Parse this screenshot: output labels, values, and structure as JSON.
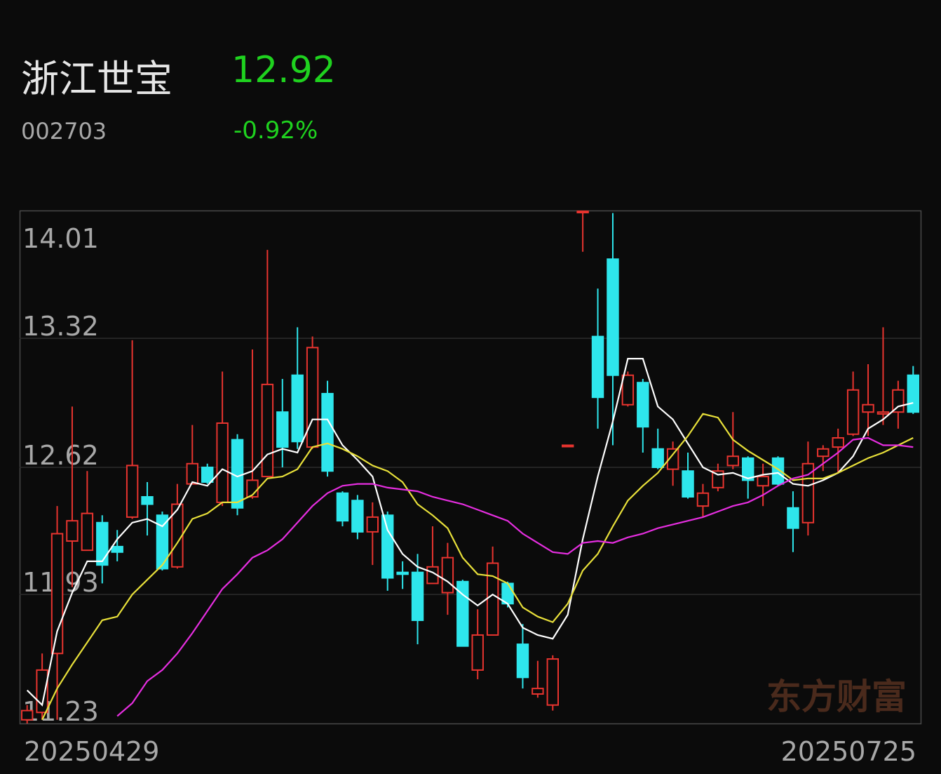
{
  "header": {
    "name": "浙江世宝",
    "price": "12.92",
    "code": "002703",
    "change": "-0.92%"
  },
  "chart_data": {
    "type": "candlestick",
    "watermark": "东方财富",
    "categories": [
      "20250429",
      null,
      null,
      null,
      null,
      null,
      null,
      null,
      null,
      null,
      null,
      null,
      null,
      null,
      null,
      null,
      null,
      null,
      null,
      null,
      null,
      null,
      null,
      null,
      null,
      null,
      null,
      null,
      null,
      null,
      null,
      null,
      null,
      null,
      null,
      null,
      null,
      null,
      null,
      null,
      null,
      null,
      null,
      null,
      null,
      null,
      null,
      null,
      null,
      null,
      null,
      null,
      null,
      null,
      null,
      null,
      null,
      null,
      null,
      "20250725"
    ],
    "open": [
      11.25,
      11.29,
      11.61,
      12.22,
      12.17,
      12.32,
      12.19,
      12.35,
      12.46,
      12.36,
      12.08,
      12.53,
      12.62,
      12.43,
      12.77,
      12.46,
      12.57,
      12.92,
      13.12,
      12.73,
      13.02,
      12.48,
      12.44,
      12.27,
      12.36,
      12.05,
      12.05,
      11.99,
      11.94,
      12.0,
      11.52,
      11.71,
      11.99,
      11.66,
      11.39,
      11.33,
      12.74,
      14.01,
      13.33,
      13.75,
      12.96,
      13.08,
      12.72,
      12.61,
      12.6,
      12.41,
      12.51,
      12.63,
      12.67,
      12.52,
      12.67,
      12.4,
      12.32,
      12.68,
      12.73,
      12.8,
      12.92,
      12.91,
      12.92,
      13.12
    ],
    "high": [
      11.33,
      11.61,
      12.41,
      12.95,
      12.6,
      12.36,
      12.28,
      13.31,
      12.54,
      12.38,
      12.53,
      12.85,
      12.64,
      13.14,
      12.8,
      13.26,
      13.8,
      13.1,
      13.38,
      13.33,
      13.09,
      12.49,
      12.47,
      12.43,
      12.38,
      12.11,
      12.15,
      12.3,
      12.21,
      12.01,
      11.85,
      12.19,
      12.0,
      11.77,
      11.57,
      11.6,
      12.74,
      14.01,
      13.59,
      14.0,
      13.14,
      13.1,
      12.83,
      12.76,
      12.7,
      12.53,
      12.64,
      12.92,
      12.68,
      12.64,
      12.68,
      12.49,
      12.76,
      12.74,
      12.83,
      13.14,
      13.18,
      13.38,
      13.09,
      13.17
    ],
    "low": [
      11.23,
      11.25,
      11.25,
      11.97,
      12.17,
      11.99,
      12.11,
      12.34,
      12.25,
      12.06,
      12.07,
      12.53,
      12.53,
      12.41,
      12.36,
      12.45,
      12.57,
      12.62,
      12.72,
      12.72,
      12.57,
      12.3,
      12.23,
      12.09,
      11.95,
      11.96,
      11.66,
      11.99,
      11.82,
      11.65,
      11.47,
      11.71,
      11.86,
      11.42,
      11.37,
      11.3,
      12.74,
      13.79,
      12.83,
      12.74,
      12.95,
      12.7,
      12.61,
      12.52,
      12.45,
      12.35,
      12.49,
      12.61,
      12.45,
      12.41,
      12.52,
      12.16,
      12.25,
      12.6,
      12.59,
      12.79,
      12.79,
      12.85,
      12.83,
      12.91
    ],
    "close": [
      11.3,
      11.52,
      12.26,
      12.33,
      12.37,
      12.09,
      12.16,
      12.63,
      12.42,
      12.07,
      12.42,
      12.64,
      12.54,
      12.86,
      12.4,
      12.55,
      13.07,
      12.73,
      12.76,
      13.27,
      12.6,
      12.33,
      12.27,
      12.35,
      12.02,
      12.04,
      11.79,
      12.08,
      12.13,
      11.65,
      11.71,
      12.1,
      11.88,
      11.48,
      11.42,
      11.58,
      12.74,
      14.01,
      13.0,
      13.12,
      13.12,
      12.84,
      12.62,
      12.72,
      12.46,
      12.48,
      12.6,
      12.68,
      12.55,
      12.57,
      12.53,
      12.29,
      12.64,
      12.72,
      12.78,
      13.04,
      12.96,
      12.92,
      13.04,
      12.92
    ],
    "up_color": "#e8342f",
    "down_color": "#2ee6ec",
    "series": [
      {
        "color": "#ffffff",
        "values": [
          11.41,
          11.33,
          11.73,
          11.94,
          12.11,
          12.11,
          12.23,
          12.32,
          12.34,
          12.3,
          12.39,
          12.54,
          12.52,
          12.61,
          12.57,
          12.6,
          12.69,
          12.72,
          12.7,
          12.88,
          12.88,
          12.74,
          12.66,
          12.57,
          12.28,
          12.15,
          12.08,
          12.05,
          12.0,
          11.93,
          11.87,
          11.93,
          11.88,
          11.75,
          11.71,
          11.69,
          11.82,
          12.23,
          12.57,
          12.87,
          13.21,
          13.21,
          12.95,
          12.88,
          12.75,
          12.62,
          12.58,
          12.59,
          12.56,
          12.58,
          12.59,
          12.53,
          12.52,
          12.55,
          12.59,
          12.68,
          12.83,
          12.88,
          12.95,
          12.97
        ]
      },
      {
        "color": "#e8e03a",
        "values": [
          null,
          11.25,
          11.42,
          11.55,
          11.67,
          11.79,
          11.81,
          11.93,
          12.01,
          12.09,
          12.21,
          12.34,
          12.37,
          12.43,
          12.43,
          12.47,
          12.56,
          12.57,
          12.61,
          12.73,
          12.75,
          12.72,
          12.68,
          12.63,
          12.6,
          12.54,
          12.42,
          12.36,
          12.29,
          12.13,
          12.04,
          12.03,
          11.99,
          11.86,
          11.81,
          11.78,
          11.88,
          12.06,
          12.15,
          12.3,
          12.44,
          12.52,
          12.59,
          12.69,
          12.79,
          12.91,
          12.89,
          12.77,
          12.71,
          12.66,
          12.61,
          12.55,
          12.56,
          12.56,
          12.59,
          12.63,
          12.67,
          12.7,
          12.74,
          12.78
        ]
      },
      {
        "color": "#e62ee0",
        "values": [
          null,
          null,
          null,
          null,
          null,
          null,
          11.27,
          11.34,
          11.46,
          11.52,
          11.61,
          11.72,
          11.84,
          11.96,
          12.04,
          12.13,
          12.17,
          12.23,
          12.32,
          12.41,
          12.48,
          12.52,
          12.53,
          12.53,
          12.51,
          12.5,
          12.49,
          12.46,
          12.44,
          12.42,
          12.39,
          12.36,
          12.33,
          12.26,
          12.21,
          12.16,
          12.15,
          12.21,
          12.22,
          12.21,
          12.24,
          12.26,
          12.29,
          12.31,
          12.33,
          12.35,
          12.38,
          12.41,
          12.43,
          12.47,
          12.52,
          12.56,
          12.58,
          12.64,
          12.7,
          12.77,
          12.78,
          12.74,
          12.74,
          12.73
        ]
      }
    ],
    "ylim": [
      11.23,
      14.01
    ],
    "yticks": [
      14.01,
      13.32,
      12.62,
      11.93,
      11.23
    ],
    "grid": true
  }
}
